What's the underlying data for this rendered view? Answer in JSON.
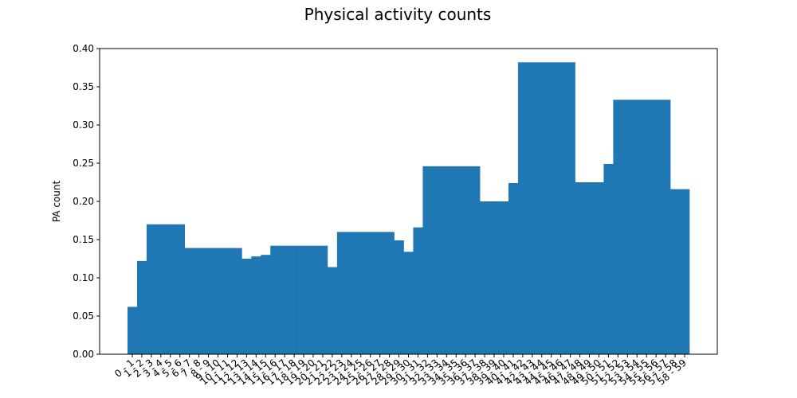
{
  "chart_data": {
    "type": "bar",
    "title": "Physical activity counts",
    "xlabel": "",
    "ylabel": "PA count",
    "ylim": [
      0,
      0.4
    ],
    "yticks": [
      0.0,
      0.05,
      0.1,
      0.15,
      0.2,
      0.25,
      0.3,
      0.35,
      0.4
    ],
    "ytick_labels": [
      "0.00",
      "0.05",
      "0.10",
      "0.15",
      "0.20",
      "0.25",
      "0.30",
      "0.35",
      "0.40"
    ],
    "bar_color": "#1f77b4",
    "grid": false,
    "categories": [
      "0 - 1",
      "1 - 2",
      "2 - 3",
      "3 - 4",
      "4 - 5",
      "5 - 6",
      "6 - 7",
      "7 - 8",
      "8 - 9",
      "9 - 10",
      "10 - 11",
      "11 - 12",
      "12 - 13",
      "13 - 14",
      "14 - 15",
      "15 - 16",
      "16 - 17",
      "17 - 18",
      "18 - 19",
      "19 - 20",
      "20 - 21",
      "21 - 22",
      "22 - 23",
      "23 - 24",
      "24 - 25",
      "25 - 26",
      "26 - 27",
      "27 - 28",
      "28 - 29",
      "29 - 30",
      "30 - 31",
      "31 - 32",
      "32 - 33",
      "33 - 34",
      "34 - 35",
      "35 - 36",
      "36 - 37",
      "37 - 38",
      "38 - 39",
      "39 - 40",
      "40 - 41",
      "41 - 42",
      "42 - 43",
      "43 - 44",
      "44 - 45",
      "45 - 46",
      "46 - 47",
      "47 - 48",
      "48 - 49",
      "49 - 50",
      "50 - 51",
      "51 - 52",
      "52 - 53",
      "53 - 54",
      "54 - 55",
      "55 - 56",
      "56 - 57",
      "57 - 58",
      "58 - 59"
    ],
    "values": [
      0.062,
      0.122,
      0.17,
      0.17,
      0.17,
      0.17,
      0.139,
      0.139,
      0.139,
      0.139,
      0.139,
      0.139,
      0.125,
      0.128,
      0.13,
      0.142,
      0.142,
      0.142,
      0.142,
      0.142,
      0.142,
      0.114,
      0.16,
      0.16,
      0.16,
      0.16,
      0.16,
      0.16,
      0.149,
      0.134,
      0.166,
      0.246,
      0.246,
      0.246,
      0.246,
      0.246,
      0.246,
      0.2,
      0.2,
      0.2,
      0.224,
      0.382,
      0.382,
      0.382,
      0.382,
      0.382,
      0.382,
      0.225,
      0.225,
      0.225,
      0.249,
      0.333,
      0.333,
      0.333,
      0.333,
      0.333,
      0.333,
      0.216,
      0.216
    ]
  }
}
